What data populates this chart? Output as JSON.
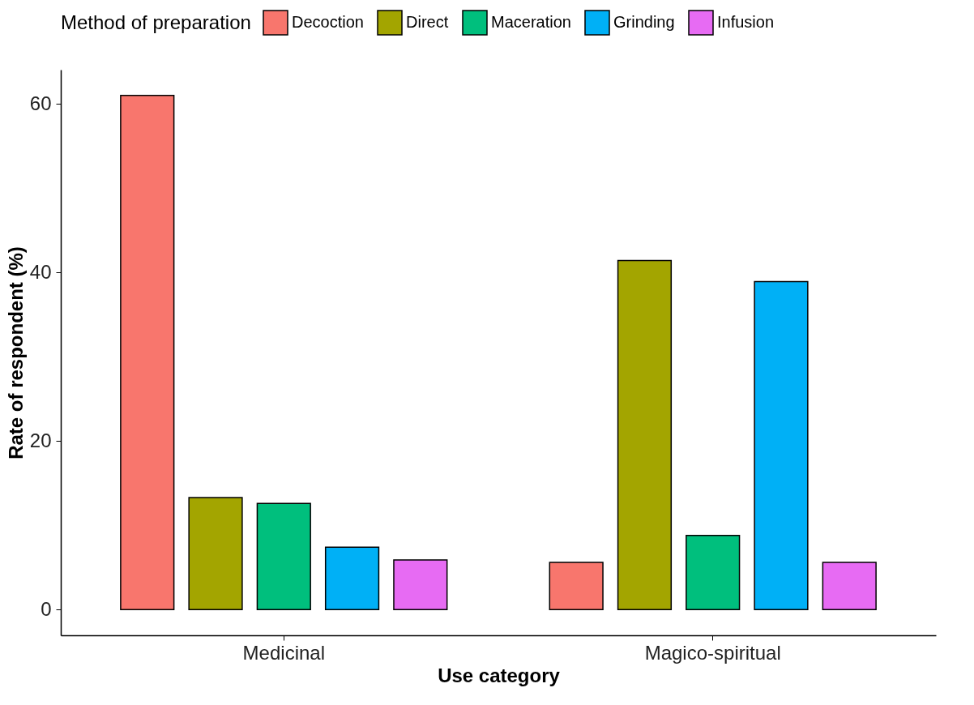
{
  "chart_data": {
    "type": "bar",
    "xlabel": "Use category",
    "ylabel": "Rate of respondent (%)",
    "legend_title": "Method of preparation",
    "legend": "top",
    "grid": false,
    "categories": [
      "Medicinal",
      "Magico-spiritual"
    ],
    "ylim": [
      -3.05,
      64.05
    ],
    "yticks": [
      0,
      20,
      40,
      60
    ],
    "series": [
      {
        "name": "Decoction",
        "color": "#f8766d",
        "values": [
          61.0,
          5.6
        ]
      },
      {
        "name": "Direct",
        "color": "#a3a500",
        "values": [
          13.3,
          41.4
        ]
      },
      {
        "name": "Maceration",
        "color": "#00bf7d",
        "values": [
          12.6,
          8.8
        ]
      },
      {
        "name": "Grinding",
        "color": "#00b0f6",
        "values": [
          7.4,
          38.9
        ]
      },
      {
        "name": "Infusion",
        "color": "#e76bf3",
        "values": [
          5.9,
          5.6
        ]
      }
    ]
  }
}
